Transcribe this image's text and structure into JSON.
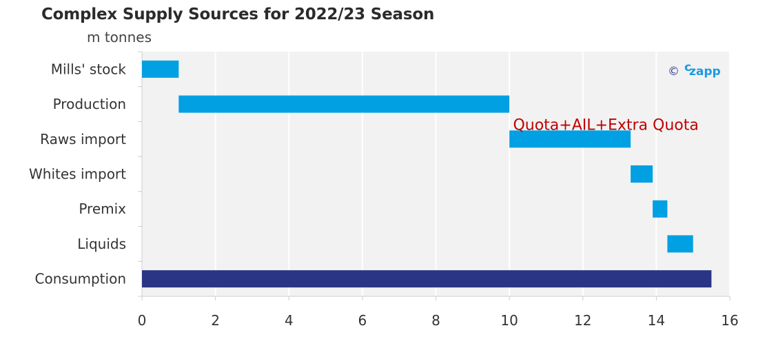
{
  "chart_data": {
    "type": "bar",
    "orientation": "horizontal",
    "title": "Complex Supply Sources for 2022/23 Season",
    "unit_label": "m tonnes",
    "categories": [
      "Mills' stock",
      "Production",
      "Raws import",
      "Whites import",
      "Premix",
      "Liquids",
      "Consumption"
    ],
    "ranges": [
      {
        "category": "Mills' stock",
        "start": 0,
        "end": 1.0,
        "color": "#00a0e3"
      },
      {
        "category": "Production",
        "start": 1.0,
        "end": 10.0,
        "color": "#00a0e3"
      },
      {
        "category": "Raws import",
        "start": 10.0,
        "end": 13.3,
        "color": "#00a0e3"
      },
      {
        "category": "Whites import",
        "start": 13.3,
        "end": 13.9,
        "color": "#00a0e3"
      },
      {
        "category": "Premix",
        "start": 13.9,
        "end": 14.3,
        "color": "#00a0e3"
      },
      {
        "category": "Liquids",
        "start": 14.3,
        "end": 15.0,
        "color": "#00a0e3"
      },
      {
        "category": "Consumption",
        "start": 0,
        "end": 15.5,
        "color": "#2b3585"
      }
    ],
    "xlim": [
      0,
      16
    ],
    "xticks": [
      0,
      2,
      4,
      6,
      8,
      10,
      12,
      14,
      16
    ],
    "grid": true,
    "annotation": {
      "text": "Quota+AIL+Extra Quota",
      "category": "Raws import",
      "x": 10.1,
      "color": "#c00000"
    },
    "watermark": {
      "symbol": "©",
      "superscript": "c",
      "text": "zapp"
    },
    "plot_background": "#f2f2f2"
  }
}
